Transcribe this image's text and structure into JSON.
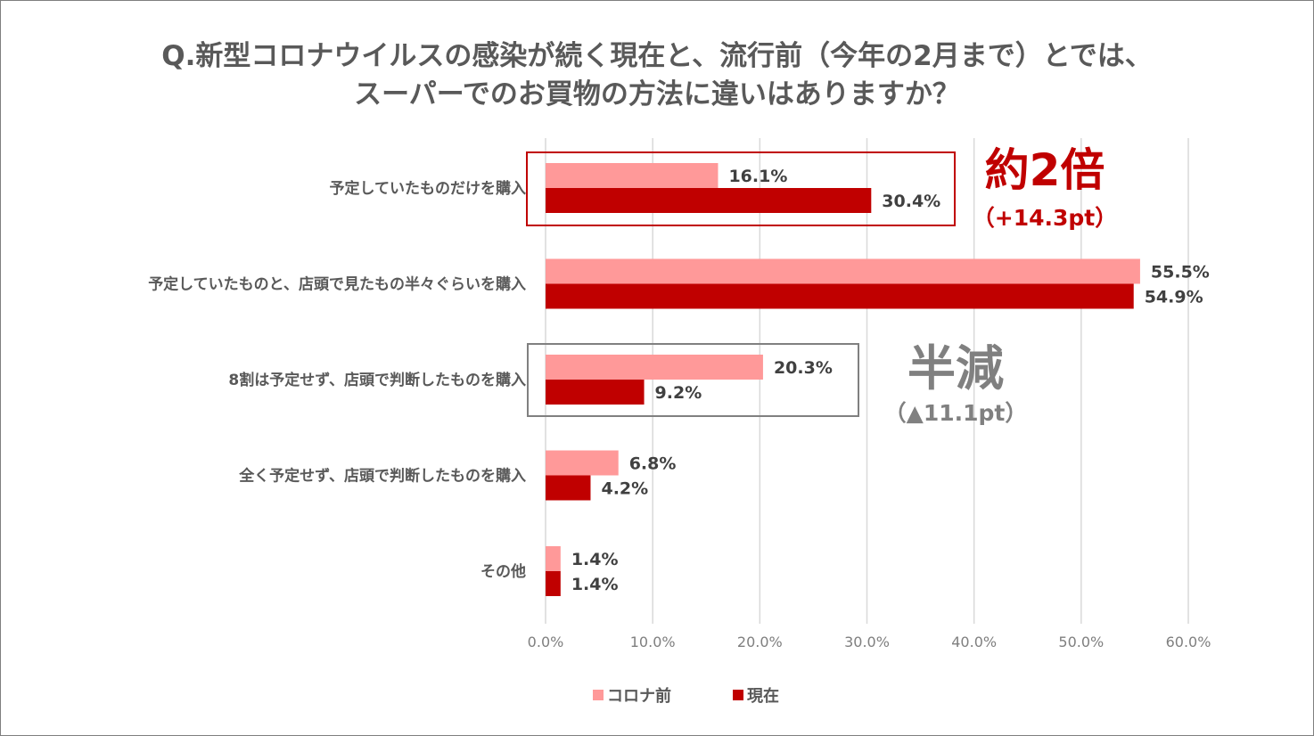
{
  "chart_data": {
    "type": "bar",
    "orientation": "horizontal",
    "title": "Q.新型コロナウイルスの感染が続く現在と、流行前（今年の2月まで）とでは、",
    "title_line2": "スーパーでのお買物の方法に違いはありますか？",
    "categories": [
      "予定していたものだけを購入",
      "予定していたものと、店頭で見たもの半々ぐらいを購入",
      "8割は予定せず、店頭で判断したものを購入",
      "全く予定せず、店頭で判断したものを購入",
      "その他"
    ],
    "series": [
      {
        "name": "コロナ前",
        "color": "#FF9999",
        "values": [
          16.1,
          55.5,
          20.3,
          6.8,
          1.4
        ],
        "labels": [
          "16.1%",
          "55.5%",
          "20.3%",
          "6.8%",
          "1.4%"
        ]
      },
      {
        "name": "現在",
        "color": "#C00000",
        "values": [
          30.4,
          54.9,
          9.2,
          4.2,
          1.4
        ],
        "labels": [
          "30.4%",
          "54.9%",
          "9.2%",
          "4.2%",
          "1.4%"
        ]
      }
    ],
    "xlim": [
      0,
      60
    ],
    "xticks": [
      "0.0%",
      "10.0%",
      "20.0%",
      "30.0%",
      "40.0%",
      "50.0%",
      "60.0%"
    ],
    "grid": true,
    "legend_position": "bottom",
    "annotations": [
      {
        "category": 0,
        "main": "約2倍",
        "sub": "（+14.3pt）",
        "color": "#C00000"
      },
      {
        "category": 2,
        "main": "半減",
        "sub": "（▲11.1pt）",
        "color": "#808080"
      }
    ]
  }
}
